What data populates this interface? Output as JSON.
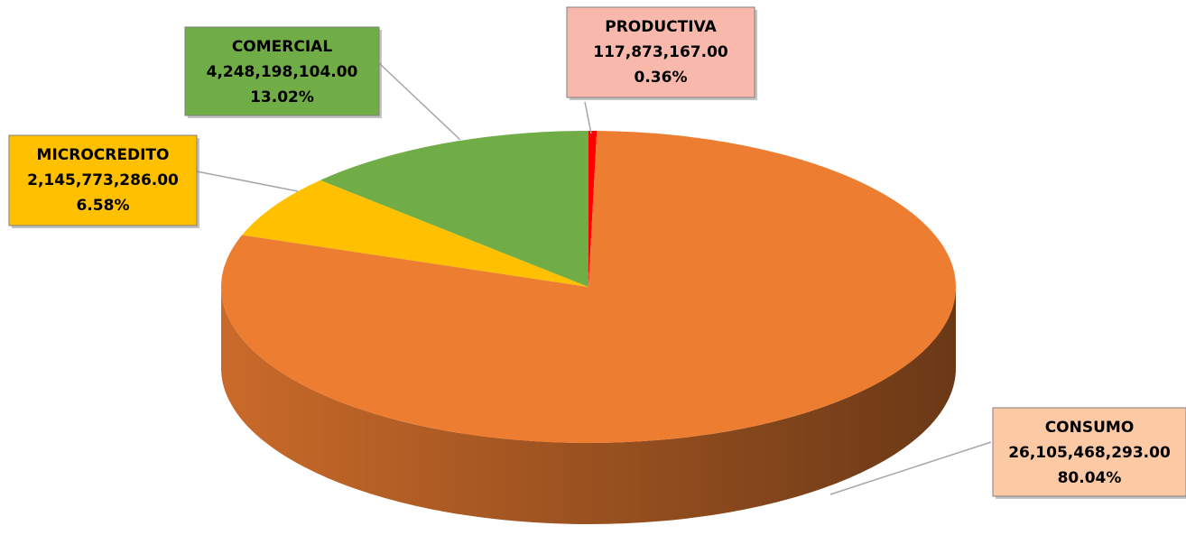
{
  "chart_data": {
    "type": "pie",
    "categories": [
      "PRODUCTIVA",
      "CONSUMO",
      "MICROCREDITO",
      "COMERCIAL"
    ],
    "values": [
      117873167,
      26105468293,
      2145773286,
      4248198104
    ],
    "value_labels": [
      "117,873,167.00",
      "26,105,468,293.00",
      "2,145,773,286.00",
      "4,248,198,104.00"
    ],
    "percent_values": [
      0.36,
      80.04,
      6.58,
      13.02
    ],
    "percent_labels": [
      "0.36%",
      "80.04%",
      "6.58%",
      "13.02%"
    ],
    "colors": [
      "#ff0000",
      "#ed7d31",
      "#ffc000",
      "#70ad47"
    ],
    "label_colors": [
      "#f8b9ac",
      "#fbc9a4",
      "#ffc000",
      "#70ad47"
    ]
  }
}
